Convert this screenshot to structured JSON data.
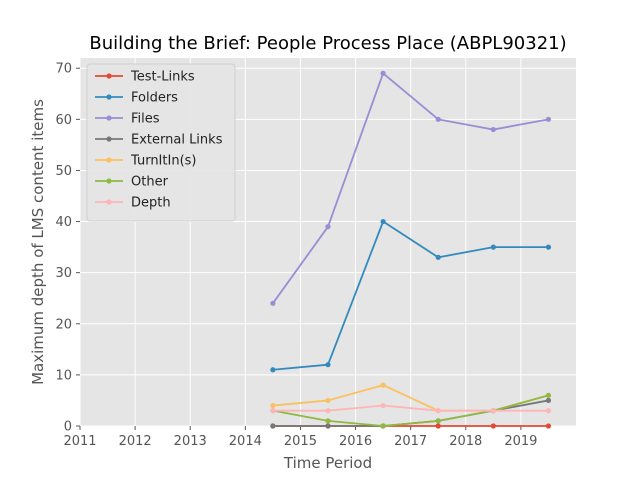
{
  "chart_data": {
    "type": "line",
    "title": "Building the Brief: People Process Place (ABPL90321)",
    "xlabel": "Time Period",
    "ylabel": "Maximum depth of LMS content items",
    "xlim": [
      2011,
      2020
    ],
    "ylim": [
      0,
      72
    ],
    "xticks": [
      2011,
      2012,
      2013,
      2014,
      2015,
      2016,
      2017,
      2018,
      2019
    ],
    "yticks": [
      0,
      10,
      20,
      30,
      40,
      50,
      60,
      70
    ],
    "x": [
      2014.5,
      2015.5,
      2016.5,
      2017.5,
      2018.5,
      2019.5
    ],
    "grid": true,
    "legend_position": "top-left",
    "series": [
      {
        "name": "Test-Links",
        "color": "#e24a33",
        "values": [
          0,
          0,
          0,
          0,
          0,
          0
        ]
      },
      {
        "name": "Folders",
        "color": "#348abd",
        "values": [
          11,
          12,
          40,
          33,
          35,
          35
        ]
      },
      {
        "name": "Files",
        "color": "#988ed5",
        "values": [
          24,
          39,
          69,
          60,
          58,
          60
        ]
      },
      {
        "name": "External Links",
        "color": "#777777",
        "values": [
          0,
          0,
          0,
          1,
          3,
          5
        ]
      },
      {
        "name": "TurnItIn(s)",
        "color": "#fbc15e",
        "values": [
          4,
          5,
          8,
          3,
          3,
          6
        ]
      },
      {
        "name": "Other",
        "color": "#8eba42",
        "values": [
          3,
          1,
          0,
          1,
          3,
          6
        ]
      },
      {
        "name": "Depth",
        "color": "#ffb5b8",
        "values": [
          3,
          3,
          4,
          3,
          3,
          3
        ]
      }
    ]
  }
}
